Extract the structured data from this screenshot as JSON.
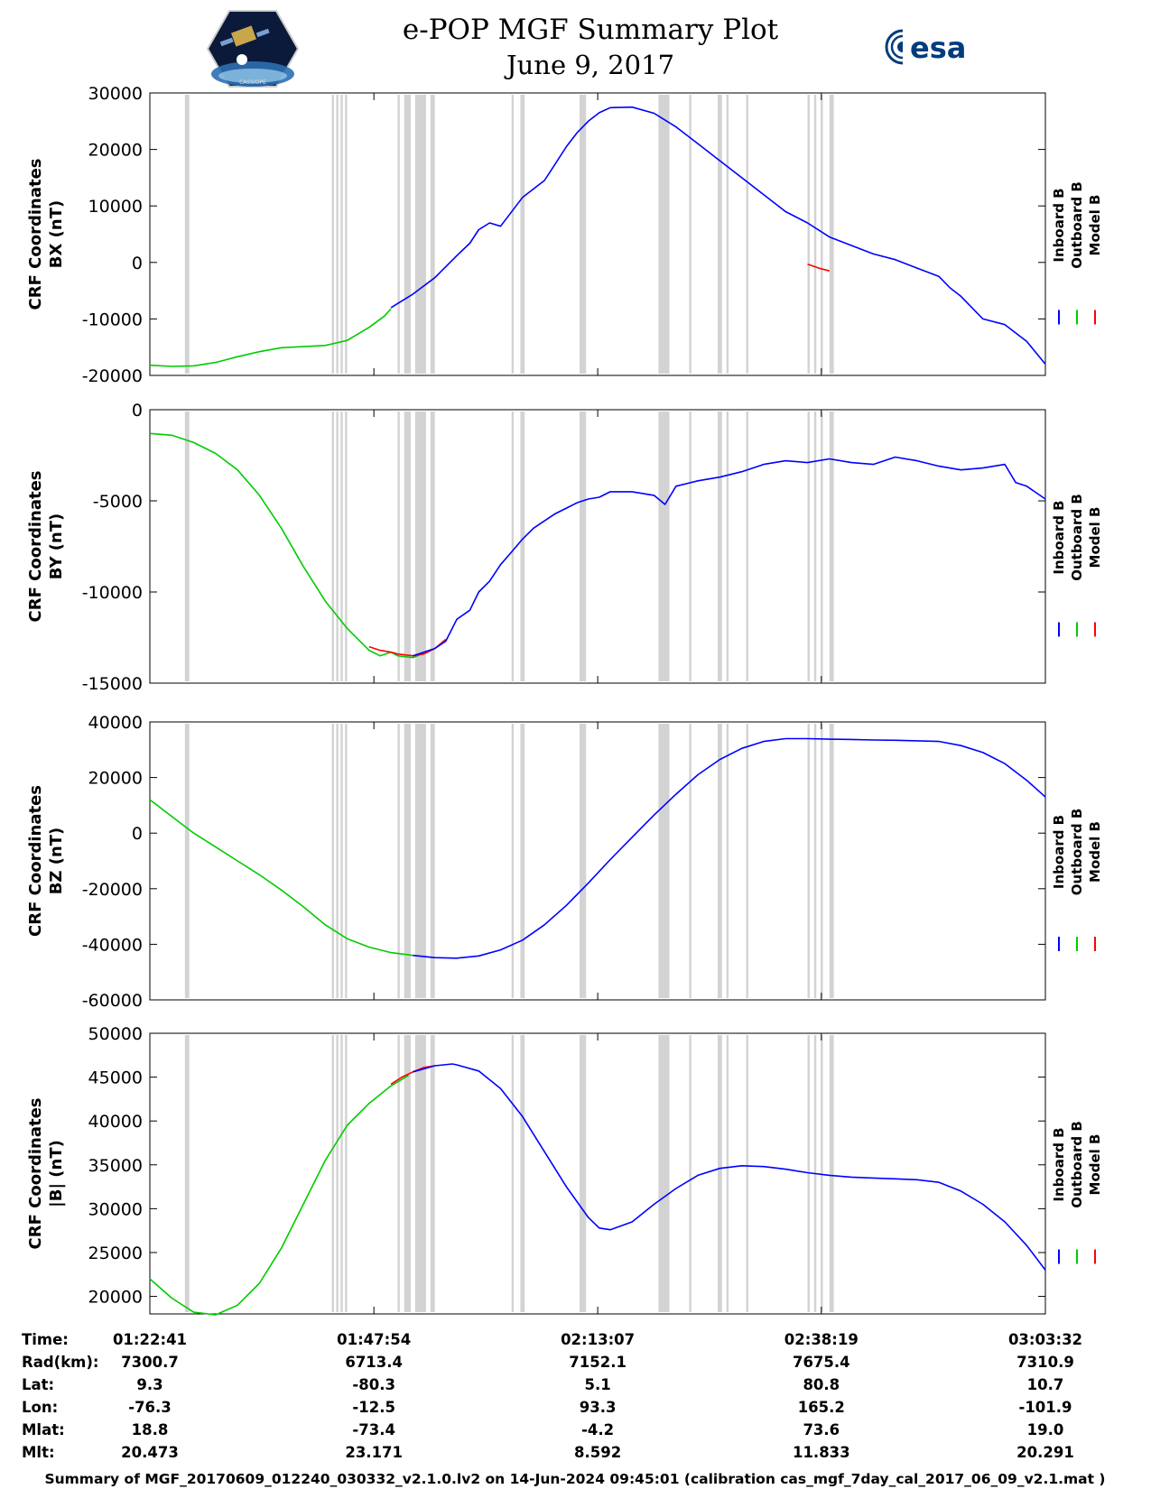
{
  "header": {
    "title": "e-POP MGF Summary Plot",
    "date": "June 9, 2017",
    "left_logo_text": "CASSIOPE",
    "right_logo_text": "esa"
  },
  "legend": {
    "labels": [
      "Inboard B",
      "Outboard B",
      "Model B"
    ],
    "colors": [
      "#0000ff",
      "#00cc00",
      "#ff0000"
    ]
  },
  "gap_color": "#d3d3d3",
  "gap_bands": [
    [
      1.6,
      1.8
    ],
    [
      8.3,
      8.4
    ],
    [
      8.5,
      8.6
    ],
    [
      8.7,
      8.8
    ],
    [
      8.9,
      9.0
    ],
    [
      11.3,
      11.4
    ],
    [
      11.6,
      11.9
    ],
    [
      12.1,
      12.6
    ],
    [
      12.8,
      13.0
    ],
    [
      16.5,
      16.6
    ],
    [
      16.9,
      17.1
    ],
    [
      19.6,
      19.9
    ],
    [
      23.2,
      23.7
    ],
    [
      24.6,
      24.7
    ],
    [
      25.9,
      26.1
    ],
    [
      26.3,
      26.4
    ],
    [
      27.2,
      27.3
    ],
    [
      30.0,
      30.1
    ],
    [
      30.3,
      30.4
    ],
    [
      30.6,
      30.7
    ],
    [
      31.0,
      31.2
    ]
  ],
  "xaxis": {
    "min": 0,
    "max": 40.85,
    "ticks": [
      0,
      10.22,
      20.43,
      30.63,
      40.85
    ]
  },
  "chart_data": [
    {
      "type": "line",
      "id": "bx",
      "ylabel_line1": "CRF Coordinates",
      "ylabel_line2": "BX (nT)",
      "ylim": [
        -20000,
        30000
      ],
      "yticks": [
        30000,
        20000,
        10000,
        0,
        -10000,
        -20000
      ],
      "series": [
        {
          "name": "Outboard B",
          "color": "#00cc00",
          "x": [
            0,
            1,
            2,
            3,
            4,
            5,
            6,
            7,
            8,
            9,
            10,
            10.7,
            11
          ],
          "values": [
            -18200,
            -18400,
            -18300,
            -17700,
            -16700,
            -15800,
            -15100,
            -14900,
            -14700,
            -13800,
            -11500,
            -9500,
            -8200
          ]
        },
        {
          "name": "Model B",
          "color": "#ff0000",
          "x": [
            30.0,
            30.3,
            30.6,
            31.0
          ],
          "values": [
            -300,
            -700,
            -1100,
            -1500
          ]
        },
        {
          "name": "Inboard B",
          "color": "#0000ff",
          "x": [
            11,
            12,
            13,
            14,
            14.6,
            15,
            15.5,
            16,
            17,
            18,
            18.5,
            19,
            19.5,
            20,
            20.5,
            21,
            22,
            23,
            24,
            25,
            26,
            27,
            28,
            29,
            30,
            31,
            32,
            33,
            34,
            35,
            36,
            36.5,
            37,
            38,
            39,
            40,
            40.85
          ],
          "values": [
            -8000,
            -5600,
            -2700,
            1200,
            3400,
            5800,
            7000,
            6400,
            11500,
            14500,
            17500,
            20500,
            23000,
            25000,
            26500,
            27400,
            27500,
            26400,
            24000,
            21000,
            18000,
            15000,
            12000,
            9000,
            7000,
            4500,
            3000,
            1500,
            500,
            -1000,
            -2500,
            -4500,
            -6000,
            -10000,
            -11000,
            -14000,
            -18000
          ]
        }
      ]
    },
    {
      "type": "line",
      "id": "by",
      "ylabel_line1": "CRF Coordinates",
      "ylabel_line2": "BY (nT)",
      "ylim": [
        -15000,
        0
      ],
      "yticks": [
        0,
        -5000,
        -10000,
        -15000
      ],
      "series": [
        {
          "name": "Outboard B",
          "color": "#00cc00",
          "x": [
            0,
            1,
            2,
            3,
            4,
            5,
            6,
            7,
            8,
            9,
            10,
            10.5,
            11,
            11.3,
            12,
            13
          ],
          "values": [
            -1300,
            -1400,
            -1800,
            -2400,
            -3300,
            -4700,
            -6500,
            -8600,
            -10500,
            -12000,
            -13200,
            -13500,
            -13300,
            -13500,
            -13600,
            -13100
          ]
        },
        {
          "name": "Model B",
          "color": "#ff0000",
          "x": [
            10,
            10.5,
            11,
            11.3,
            12,
            12.5,
            13,
            13.5
          ],
          "values": [
            -13000,
            -13200,
            -13300,
            -13400,
            -13500,
            -13400,
            -13100,
            -12600
          ]
        },
        {
          "name": "Inboard B",
          "color": "#0000ff",
          "x": [
            12,
            13,
            13.5,
            14,
            14.6,
            15,
            15.5,
            16,
            16.5,
            17,
            17.5,
            18,
            18.5,
            19,
            19.5,
            20,
            20.5,
            21,
            22,
            23,
            23.5,
            24,
            25,
            26,
            27,
            28,
            29,
            30,
            31,
            32,
            33,
            34,
            35,
            36,
            37,
            38,
            39,
            39.5,
            40,
            40.85
          ],
          "values": [
            -13500,
            -13100,
            -12700,
            -11500,
            -11000,
            -10000,
            -9400,
            -8500,
            -7800,
            -7100,
            -6500,
            -6100,
            -5700,
            -5400,
            -5100,
            -4900,
            -4800,
            -4500,
            -4500,
            -4700,
            -5200,
            -4200,
            -3900,
            -3700,
            -3400,
            -3000,
            -2800,
            -2900,
            -2700,
            -2900,
            -3000,
            -2600,
            -2800,
            -3100,
            -3300,
            -3200,
            -3000,
            -4000,
            -4200,
            -4900
          ]
        }
      ]
    },
    {
      "type": "line",
      "id": "bz",
      "ylabel_line1": "CRF Coordinates",
      "ylabel_line2": "BZ (nT)",
      "ylim": [
        -60000,
        40000
      ],
      "yticks": [
        40000,
        20000,
        0,
        -20000,
        -40000,
        -60000
      ],
      "series": [
        {
          "name": "Outboard B",
          "color": "#00cc00",
          "x": [
            0,
            1,
            2,
            3,
            4,
            5,
            6,
            7,
            8,
            9,
            10,
            11,
            12
          ],
          "values": [
            12000,
            6000,
            0,
            -5000,
            -10000,
            -15000,
            -20500,
            -26500,
            -33000,
            -38000,
            -41000,
            -43000,
            -44000
          ]
        },
        {
          "name": "Inboard B",
          "color": "#0000ff",
          "x": [
            12,
            13,
            14,
            15,
            16,
            17,
            18,
            19,
            20,
            21,
            22,
            23,
            24,
            25,
            26,
            27,
            28,
            29,
            30,
            31,
            32,
            33,
            34,
            35,
            36,
            37,
            38,
            39,
            40,
            40.85
          ],
          "values": [
            -44000,
            -44800,
            -45000,
            -44200,
            -42000,
            -38500,
            -33000,
            -26000,
            -18000,
            -9500,
            -1500,
            6500,
            14000,
            21000,
            26500,
            30500,
            33000,
            34000,
            34000,
            33800,
            33700,
            33500,
            33400,
            33200,
            33000,
            31500,
            29000,
            25000,
            19000,
            13000
          ]
        }
      ]
    },
    {
      "type": "line",
      "id": "bmag",
      "ylabel_line1": "CRF Coordinates",
      "ylabel_line2": "|B| (nT)",
      "ylim": [
        18000,
        50000
      ],
      "yticks": [
        50000,
        45000,
        40000,
        35000,
        30000,
        25000,
        20000
      ],
      "series": [
        {
          "name": "Outboard B",
          "color": "#00cc00",
          "x": [
            0,
            1,
            2,
            3,
            4,
            5,
            6,
            7,
            8,
            9,
            10,
            11,
            11.8
          ],
          "values": [
            22000,
            19800,
            18200,
            17900,
            19000,
            21500,
            25500,
            30500,
            35500,
            39500,
            42000,
            44000,
            45200
          ]
        },
        {
          "name": "Model B",
          "color": "#ff0000",
          "x": [
            11.0,
            11.5,
            12,
            12.5,
            13
          ],
          "values": [
            44200,
            45000,
            45600,
            46100,
            46300
          ]
        },
        {
          "name": "Inboard B",
          "color": "#0000ff",
          "x": [
            12,
            13,
            13.8,
            14,
            15,
            16,
            17,
            18,
            19,
            20,
            20.5,
            21,
            22,
            23,
            24,
            25,
            26,
            27,
            28,
            29,
            30,
            31,
            32,
            33,
            34,
            35,
            36,
            37,
            38,
            39,
            40,
            40.85
          ],
          "values": [
            45600,
            46300,
            46500,
            46400,
            45700,
            43700,
            40500,
            36500,
            32500,
            29000,
            27800,
            27600,
            28500,
            30500,
            32300,
            33800,
            34600,
            34900,
            34800,
            34500,
            34100,
            33800,
            33600,
            33500,
            33400,
            33300,
            33000,
            32000,
            30500,
            28500,
            25800,
            23000
          ]
        }
      ]
    }
  ],
  "info_table": {
    "row_labels": [
      "Time:",
      "Rad(km):",
      "Lat:",
      "Lon:",
      "Mlat:",
      "Mlt:"
    ],
    "columns": [
      [
        "01:22:41",
        "7300.7",
        "9.3",
        "-76.3",
        "18.8",
        "20.473"
      ],
      [
        "01:47:54",
        "6713.4",
        "-80.3",
        "-12.5",
        "-73.4",
        "23.171"
      ],
      [
        "02:13:07",
        "7152.1",
        "5.1",
        "93.3",
        "-4.2",
        "8.592"
      ],
      [
        "02:38:19",
        "7675.4",
        "80.8",
        "165.2",
        "73.6",
        "11.833"
      ],
      [
        "03:03:32",
        "7310.9",
        "10.7",
        "-101.9",
        "19.0",
        "20.291"
      ]
    ]
  },
  "footer": "Summary of MGF_20170609_012240_030332_v2.1.0.lv2 on 14-Jun-2024 09:45:01 (calibration cas_mgf_7day_cal_2017_06_09_v2.1.mat )"
}
